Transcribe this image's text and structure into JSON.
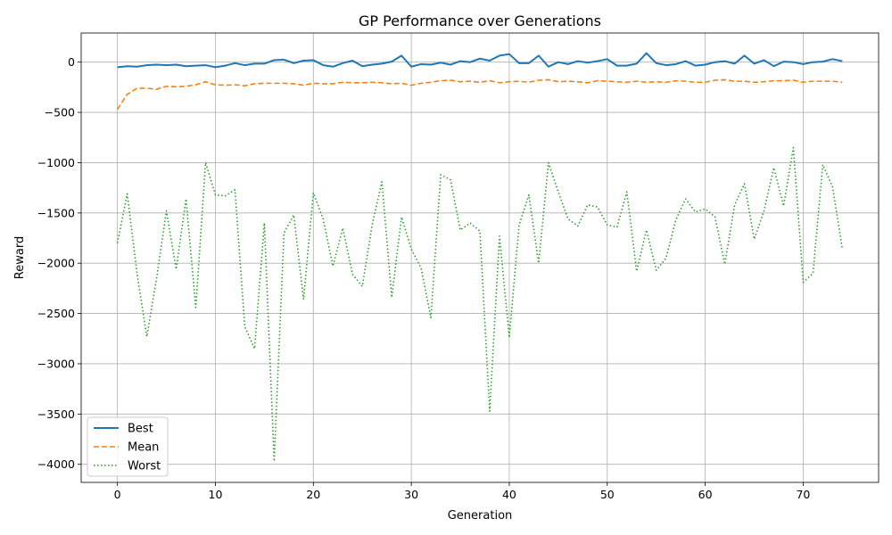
{
  "chart_data": {
    "type": "line",
    "title": "GP Performance over Generations",
    "xlabel": "Generation",
    "ylabel": "Reward",
    "xlim": [
      -3.7,
      77.7
    ],
    "ylim": [
      -4180,
      290
    ],
    "xticks": [
      0,
      10,
      20,
      30,
      40,
      50,
      60,
      70
    ],
    "yticks": [
      0,
      -500,
      -1000,
      -1500,
      -2000,
      -2500,
      -3000,
      -3500,
      -4000
    ],
    "grid": true,
    "legend_position": "bottom-left",
    "x": [
      0,
      1,
      2,
      3,
      4,
      5,
      6,
      7,
      8,
      9,
      10,
      11,
      12,
      13,
      14,
      15,
      16,
      17,
      18,
      19,
      20,
      21,
      22,
      23,
      24,
      25,
      26,
      27,
      28,
      29,
      30,
      31,
      32,
      33,
      34,
      35,
      36,
      37,
      38,
      39,
      40,
      41,
      42,
      43,
      44,
      45,
      46,
      47,
      48,
      49,
      50,
      51,
      52,
      53,
      54,
      55,
      56,
      57,
      58,
      59,
      60,
      61,
      62,
      63,
      64,
      65,
      66,
      67,
      68,
      69,
      70,
      71,
      72,
      73,
      74
    ],
    "series": [
      {
        "name": "Best",
        "color": "#1f77b4",
        "style": "solid",
        "values": [
          -50,
          -40,
          -45,
          -30,
          -25,
          -30,
          -25,
          -40,
          -35,
          -30,
          -50,
          -35,
          -10,
          -30,
          -15,
          -15,
          20,
          25,
          -10,
          15,
          20,
          -30,
          -45,
          -10,
          15,
          -40,
          -25,
          -15,
          5,
          65,
          -45,
          -20,
          -25,
          -5,
          -25,
          10,
          0,
          35,
          15,
          65,
          80,
          -10,
          -10,
          65,
          -45,
          0,
          -20,
          10,
          -5,
          10,
          30,
          -35,
          -35,
          -15,
          90,
          -10,
          -30,
          -20,
          10,
          -35,
          -25,
          0,
          10,
          -15,
          65,
          -15,
          20,
          -40,
          5,
          0,
          -20,
          0,
          5,
          30,
          10
        ]
      },
      {
        "name": "Mean",
        "color": "#ff7f0e",
        "style": "dashed",
        "values": [
          -470,
          -320,
          -260,
          -260,
          -270,
          -240,
          -245,
          -240,
          -225,
          -195,
          -225,
          -230,
          -225,
          -235,
          -215,
          -210,
          -210,
          -210,
          -215,
          -230,
          -210,
          -215,
          -215,
          -200,
          -205,
          -205,
          -200,
          -205,
          -215,
          -210,
          -230,
          -210,
          -200,
          -185,
          -180,
          -195,
          -190,
          -200,
          -185,
          -205,
          -195,
          -190,
          -200,
          -180,
          -175,
          -195,
          -190,
          -195,
          -205,
          -185,
          -190,
          -195,
          -200,
          -190,
          -200,
          -195,
          -200,
          -185,
          -190,
          -200,
          -200,
          -180,
          -175,
          -190,
          -190,
          -200,
          -195,
          -185,
          -185,
          -180,
          -200,
          -190,
          -190,
          -190,
          -200
        ]
      },
      {
        "name": "Worst",
        "color": "#2ca02c",
        "style": "dotted",
        "values": [
          -1800,
          -1310,
          -2100,
          -2730,
          -2150,
          -1480,
          -2060,
          -1360,
          -2440,
          -1000,
          -1320,
          -1330,
          -1270,
          -2630,
          -2850,
          -1600,
          -3970,
          -1700,
          -1520,
          -2360,
          -1300,
          -1560,
          -2030,
          -1650,
          -2110,
          -2230,
          -1620,
          -1190,
          -2340,
          -1540,
          -1860,
          -2050,
          -2540,
          -1120,
          -1170,
          -1670,
          -1600,
          -1680,
          -3470,
          -1730,
          -2740,
          -1620,
          -1320,
          -2000,
          -1000,
          -1290,
          -1560,
          -1630,
          -1420,
          -1440,
          -1620,
          -1640,
          -1290,
          -2080,
          -1670,
          -2070,
          -1950,
          -1570,
          -1360,
          -1490,
          -1460,
          -1540,
          -2010,
          -1420,
          -1210,
          -1760,
          -1480,
          -1050,
          -1430,
          -850,
          -2190,
          -2100,
          -1020,
          -1240,
          -1860
        ]
      }
    ]
  }
}
